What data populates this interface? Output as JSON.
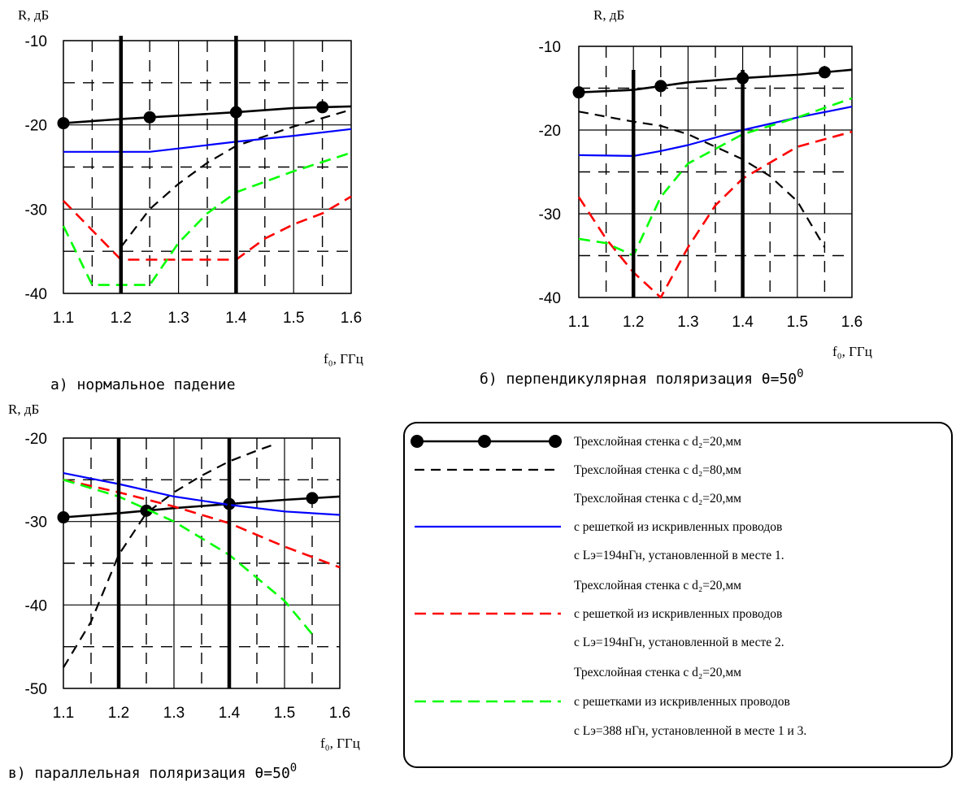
{
  "colors": {
    "black_solid": "#000000",
    "black_dashed": "#000000",
    "blue": "#0000ff",
    "red": "#ff0000",
    "green": "#00ff00",
    "grid": "#000000",
    "marker_line": "#000000"
  },
  "chart_data": [
    {
      "type": "line",
      "panel": "a",
      "caption": "а) нормальное падение",
      "ylabel": "R, дБ",
      "xlabel": "f₀, ГГц",
      "xlim": [
        1.1,
        1.6
      ],
      "ylim": [
        -40,
        -10
      ],
      "xticks": [
        "1.1",
        "1.2",
        "1.3",
        "1.4",
        "1.5",
        "1.6"
      ],
      "yticks": [
        "-10",
        "-20",
        "-30",
        "-40"
      ],
      "grid": true,
      "vertical_marker_lines": [
        1.2,
        1.4
      ],
      "series": [
        {
          "style": "black_solid",
          "marker": "dot",
          "markers_at": [
            1.1,
            1.25,
            1.4,
            1.55
          ],
          "points": [
            [
              1.1,
              -19.8
            ],
            [
              1.2,
              -19.3
            ],
            [
              1.3,
              -18.9
            ],
            [
              1.4,
              -18.5
            ],
            [
              1.5,
              -18.0
            ],
            [
              1.6,
              -17.8
            ]
          ]
        },
        {
          "style": "black_dashed",
          "points": [
            [
              1.2,
              -34.5
            ],
            [
              1.25,
              -30.0
            ],
            [
              1.3,
              -27.0
            ],
            [
              1.35,
              -24.5
            ],
            [
              1.4,
              -22.5
            ],
            [
              1.5,
              -20.2
            ],
            [
              1.6,
              -18.2
            ]
          ]
        },
        {
          "style": "blue",
          "points": [
            [
              1.1,
              -23.2
            ],
            [
              1.15,
              -23.2
            ],
            [
              1.25,
              -23.2
            ],
            [
              1.3,
              -22.8
            ],
            [
              1.4,
              -22.0
            ],
            [
              1.5,
              -21.3
            ],
            [
              1.6,
              -20.5
            ]
          ]
        },
        {
          "style": "red",
          "points": [
            [
              1.1,
              -29.0
            ],
            [
              1.15,
              -32.5
            ],
            [
              1.2,
              -36.0
            ],
            [
              1.3,
              -36.0
            ],
            [
              1.4,
              -36.0
            ],
            [
              1.45,
              -33.5
            ],
            [
              1.5,
              -31.8
            ],
            [
              1.55,
              -30.5
            ],
            [
              1.6,
              -28.5
            ]
          ]
        },
        {
          "style": "green",
          "points": [
            [
              1.1,
              -32.0
            ],
            [
              1.15,
              -39.0
            ],
            [
              1.25,
              -39.0
            ],
            [
              1.3,
              -34.0
            ],
            [
              1.35,
              -30.5
            ],
            [
              1.4,
              -28.0
            ],
            [
              1.5,
              -25.5
            ],
            [
              1.6,
              -23.3
            ]
          ]
        }
      ]
    },
    {
      "type": "line",
      "panel": "b",
      "caption": "б) перпендикулярная поляризация θ=50",
      "caption_sup": "0",
      "ylabel": "R, дБ",
      "xlabel": "f₀, ГГц",
      "xlim": [
        1.1,
        1.6
      ],
      "ylim": [
        -40,
        -10
      ],
      "xticks": [
        "1.1",
        "1.2",
        "1.3",
        "1.4",
        "1.5",
        "1.6"
      ],
      "yticks": [
        "-10",
        "-20",
        "-30",
        "-40"
      ],
      "grid": true,
      "vertical_marker_lines": [
        1.2,
        1.4
      ],
      "series": [
        {
          "style": "black_solid",
          "marker": "dot",
          "markers_at": [
            1.1,
            1.25,
            1.4,
            1.55
          ],
          "points": [
            [
              1.1,
              -15.5
            ],
            [
              1.2,
              -15.2
            ],
            [
              1.3,
              -14.3
            ],
            [
              1.4,
              -13.8
            ],
            [
              1.5,
              -13.4
            ],
            [
              1.6,
              -12.8
            ]
          ]
        },
        {
          "style": "black_dashed",
          "points": [
            [
              1.1,
              -17.8
            ],
            [
              1.2,
              -19.0
            ],
            [
              1.25,
              -19.5
            ],
            [
              1.3,
              -20.5
            ],
            [
              1.35,
              -22.0
            ],
            [
              1.4,
              -23.5
            ],
            [
              1.45,
              -25.5
            ],
            [
              1.5,
              -28.5
            ],
            [
              1.55,
              -34.0
            ]
          ]
        },
        {
          "style": "blue",
          "points": [
            [
              1.1,
              -23.0
            ],
            [
              1.2,
              -23.1
            ],
            [
              1.25,
              -22.5
            ],
            [
              1.3,
              -21.8
            ],
            [
              1.4,
              -20.0
            ],
            [
              1.5,
              -18.5
            ],
            [
              1.6,
              -17.2
            ]
          ]
        },
        {
          "style": "red",
          "points": [
            [
              1.1,
              -28.0
            ],
            [
              1.15,
              -33.0
            ],
            [
              1.2,
              -37.0
            ],
            [
              1.25,
              -40.0
            ],
            [
              1.3,
              -34.0
            ],
            [
              1.35,
              -29.0
            ],
            [
              1.4,
              -25.8
            ],
            [
              1.5,
              -22.0
            ],
            [
              1.6,
              -20.2
            ]
          ]
        },
        {
          "style": "green",
          "points": [
            [
              1.1,
              -33.0
            ],
            [
              1.15,
              -33.5
            ],
            [
              1.2,
              -35.0
            ],
            [
              1.25,
              -28.0
            ],
            [
              1.3,
              -24.0
            ],
            [
              1.4,
              -20.5
            ],
            [
              1.5,
              -18.5
            ],
            [
              1.6,
              -16.2
            ]
          ]
        }
      ]
    },
    {
      "type": "line",
      "panel": "c",
      "caption": "в) параллельная поляризация θ=50",
      "caption_sup": "0",
      "ylabel": "R, дБ",
      "xlabel": "f₀, ГГц",
      "xlim": [
        1.1,
        1.6
      ],
      "ylim": [
        -50,
        -20
      ],
      "xticks": [
        "1.1",
        "1.2",
        "1.3",
        "1.4",
        "1.5",
        "1.6"
      ],
      "yticks": [
        "-20",
        "-30",
        "-40",
        "-50"
      ],
      "grid": true,
      "vertical_marker_lines": [
        1.2,
        1.4
      ],
      "series": [
        {
          "style": "black_solid",
          "marker": "dot",
          "markers_at": [
            1.1,
            1.25,
            1.4,
            1.55
          ],
          "points": [
            [
              1.1,
              -29.5
            ],
            [
              1.2,
              -29.0
            ],
            [
              1.3,
              -28.4
            ],
            [
              1.4,
              -27.9
            ],
            [
              1.5,
              -27.4
            ],
            [
              1.6,
              -27.0
            ]
          ]
        },
        {
          "style": "black_dashed",
          "points": [
            [
              1.1,
              -47.5
            ],
            [
              1.15,
              -42.0
            ],
            [
              1.2,
              -34.0
            ],
            [
              1.25,
              -29.0
            ],
            [
              1.3,
              -26.5
            ],
            [
              1.35,
              -24.5
            ],
            [
              1.4,
              -22.8
            ],
            [
              1.45,
              -21.5
            ],
            [
              1.48,
              -20.8
            ]
          ]
        },
        {
          "style": "blue",
          "points": [
            [
              1.1,
              -24.2
            ],
            [
              1.2,
              -25.5
            ],
            [
              1.3,
              -27.0
            ],
            [
              1.4,
              -28.0
            ],
            [
              1.5,
              -28.8
            ],
            [
              1.6,
              -29.2
            ]
          ]
        },
        {
          "style": "red",
          "points": [
            [
              1.1,
              -25.0
            ],
            [
              1.2,
              -26.5
            ],
            [
              1.3,
              -28.2
            ],
            [
              1.4,
              -30.2
            ],
            [
              1.5,
              -33.0
            ],
            [
              1.6,
              -35.5
            ]
          ]
        },
        {
          "style": "green",
          "points": [
            [
              1.1,
              -25.0
            ],
            [
              1.2,
              -27.0
            ],
            [
              1.3,
              -30.0
            ],
            [
              1.4,
              -34.0
            ],
            [
              1.5,
              -39.5
            ],
            [
              1.55,
              -43.5
            ]
          ]
        }
      ]
    }
  ],
  "legend": {
    "entries": [
      {
        "style": "black_solid",
        "lines": [
          "Трехслойная стенка с d₂=20,мм"
        ]
      },
      {
        "style": "black_dashed",
        "lines": [
          "Трехслойная стенка с d₂=80,мм"
        ]
      },
      {
        "style": "blue",
        "lines": [
          "Трехслойная стенка с d₂=20,мм",
          "с решеткой из искривленных проводов",
          "с Lэ=194нГн, установленной в месте 1."
        ]
      },
      {
        "style": "red",
        "lines": [
          "Трехслойная стенка с d₂=20,мм",
          "с решеткой из искривленных проводов",
          "с Lэ=194нГн, установленной в месте 2."
        ]
      },
      {
        "style": "green",
        "lines": [
          "Трехслойная стенка с d₂=20,мм",
          "с решетками из искривленных проводов",
          "с Lэ=388 нГн, установленной в месте 1 и 3."
        ]
      }
    ]
  }
}
